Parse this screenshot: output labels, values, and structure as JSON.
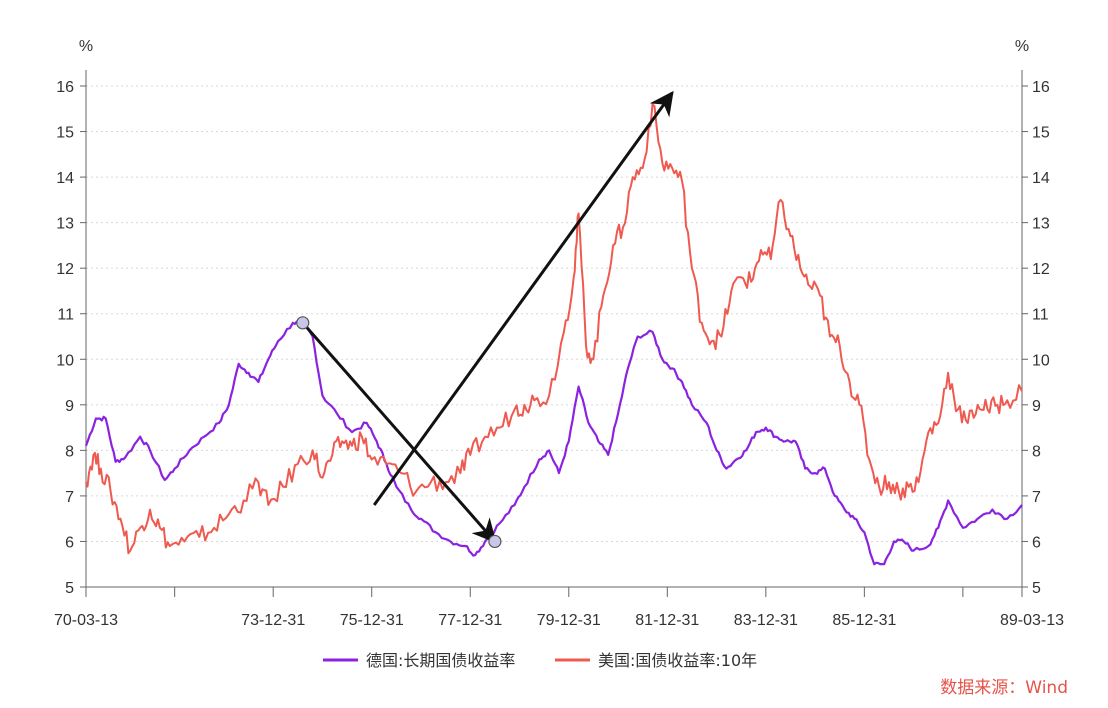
{
  "chart_data": {
    "type": "line",
    "unit_left": "%",
    "unit_right": "%",
    "ylim": [
      5,
      16
    ],
    "yticks": [
      5,
      6,
      7,
      8,
      9,
      10,
      11,
      12,
      13,
      14,
      15,
      16
    ],
    "xlim": [
      1970.2,
      1989.2
    ],
    "x_tick_labels": [
      {
        "t": 1970.2,
        "label": "70-03-13"
      },
      {
        "t": 1974.0,
        "label": "73-12-31"
      },
      {
        "t": 1976.0,
        "label": "75-12-31"
      },
      {
        "t": 1978.0,
        "label": "77-12-31"
      },
      {
        "t": 1980.0,
        "label": "79-12-31"
      },
      {
        "t": 1982.0,
        "label": "81-12-31"
      },
      {
        "t": 1984.0,
        "label": "83-12-31"
      },
      {
        "t": 1986.0,
        "label": "85-12-31"
      },
      {
        "t": 1989.2,
        "label": "89-03-13"
      }
    ],
    "x_minor_ticks": [
      1972.0,
      1988.0
    ],
    "legend_position": "bottom",
    "series": [
      {
        "name": "德国:长期国债收益率",
        "color": "#8b22e0",
        "points": [
          [
            1970.2,
            8.1
          ],
          [
            1970.4,
            8.7
          ],
          [
            1970.6,
            8.7
          ],
          [
            1970.8,
            7.75
          ],
          [
            1971.0,
            7.85
          ],
          [
            1971.3,
            8.3
          ],
          [
            1971.5,
            8.0
          ],
          [
            1971.8,
            7.35
          ],
          [
            1972.0,
            7.6
          ],
          [
            1972.3,
            8.0
          ],
          [
            1972.6,
            8.3
          ],
          [
            1972.9,
            8.6
          ],
          [
            1973.1,
            9.0
          ],
          [
            1973.3,
            9.9
          ],
          [
            1973.5,
            9.7
          ],
          [
            1973.7,
            9.5
          ],
          [
            1973.9,
            10.0
          ],
          [
            1974.1,
            10.4
          ],
          [
            1974.4,
            10.8
          ],
          [
            1974.6,
            10.8
          ],
          [
            1974.8,
            10.5
          ],
          [
            1975.0,
            9.2
          ],
          [
            1975.3,
            8.8
          ],
          [
            1975.6,
            8.4
          ],
          [
            1975.9,
            8.6
          ],
          [
            1976.1,
            8.2
          ],
          [
            1976.3,
            7.7
          ],
          [
            1976.5,
            7.2
          ],
          [
            1976.8,
            6.7
          ],
          [
            1977.0,
            6.5
          ],
          [
            1977.3,
            6.2
          ],
          [
            1977.6,
            6.0
          ],
          [
            1977.9,
            5.9
          ],
          [
            1978.1,
            5.7
          ],
          [
            1978.3,
            6.0
          ],
          [
            1978.6,
            6.4
          ],
          [
            1978.9,
            6.8
          ],
          [
            1979.1,
            7.2
          ],
          [
            1979.4,
            7.8
          ],
          [
            1979.6,
            8.0
          ],
          [
            1979.8,
            7.5
          ],
          [
            1980.0,
            8.2
          ],
          [
            1980.2,
            9.4
          ],
          [
            1980.4,
            8.6
          ],
          [
            1980.6,
            8.2
          ],
          [
            1980.8,
            7.9
          ],
          [
            1981.0,
            8.8
          ],
          [
            1981.2,
            9.8
          ],
          [
            1981.4,
            10.5
          ],
          [
            1981.7,
            10.6
          ],
          [
            1981.9,
            10.0
          ],
          [
            1982.1,
            9.8
          ],
          [
            1982.3,
            9.5
          ],
          [
            1982.5,
            9.0
          ],
          [
            1982.8,
            8.6
          ],
          [
            1983.0,
            8.0
          ],
          [
            1983.2,
            7.6
          ],
          [
            1983.4,
            7.8
          ],
          [
            1983.6,
            8.0
          ],
          [
            1983.8,
            8.4
          ],
          [
            1984.0,
            8.5
          ],
          [
            1984.2,
            8.3
          ],
          [
            1984.4,
            8.2
          ],
          [
            1984.6,
            8.2
          ],
          [
            1984.8,
            7.6
          ],
          [
            1985.0,
            7.5
          ],
          [
            1985.2,
            7.6
          ],
          [
            1985.4,
            7.0
          ],
          [
            1985.6,
            6.7
          ],
          [
            1985.8,
            6.5
          ],
          [
            1986.0,
            6.2
          ],
          [
            1986.2,
            5.5
          ],
          [
            1986.4,
            5.5
          ],
          [
            1986.6,
            6.0
          ],
          [
            1986.8,
            6.0
          ],
          [
            1987.0,
            5.8
          ],
          [
            1987.3,
            5.9
          ],
          [
            1987.5,
            6.3
          ],
          [
            1987.7,
            6.9
          ],
          [
            1988.0,
            6.3
          ],
          [
            1988.3,
            6.5
          ],
          [
            1988.6,
            6.7
          ],
          [
            1988.9,
            6.5
          ],
          [
            1989.2,
            6.8
          ]
        ]
      },
      {
        "name": "美国:国债收益率:10年",
        "color": "#ef5a50",
        "points": [
          [
            1970.2,
            7.3
          ],
          [
            1970.35,
            7.9
          ],
          [
            1970.5,
            7.6
          ],
          [
            1970.7,
            7.1
          ],
          [
            1970.9,
            6.5
          ],
          [
            1971.1,
            5.8
          ],
          [
            1971.3,
            6.3
          ],
          [
            1971.5,
            6.7
          ],
          [
            1971.7,
            6.3
          ],
          [
            1971.9,
            5.9
          ],
          [
            1972.2,
            6.0
          ],
          [
            1972.5,
            6.1
          ],
          [
            1972.8,
            6.3
          ],
          [
            1973.1,
            6.6
          ],
          [
            1973.4,
            6.9
          ],
          [
            1973.7,
            7.3
          ],
          [
            1973.9,
            6.8
          ],
          [
            1974.2,
            7.2
          ],
          [
            1974.5,
            7.7
          ],
          [
            1974.8,
            8.0
          ],
          [
            1975.0,
            7.4
          ],
          [
            1975.2,
            7.9
          ],
          [
            1975.4,
            8.2
          ],
          [
            1975.6,
            8.1
          ],
          [
            1975.8,
            8.3
          ],
          [
            1976.0,
            7.8
          ],
          [
            1976.3,
            7.7
          ],
          [
            1976.6,
            7.5
          ],
          [
            1976.9,
            7.1
          ],
          [
            1977.2,
            7.3
          ],
          [
            1977.5,
            7.3
          ],
          [
            1977.8,
            7.5
          ],
          [
            1978.0,
            7.9
          ],
          [
            1978.3,
            8.3
          ],
          [
            1978.6,
            8.5
          ],
          [
            1978.9,
            8.9
          ],
          [
            1979.1,
            9.0
          ],
          [
            1979.3,
            9.1
          ],
          [
            1979.6,
            9.2
          ],
          [
            1979.9,
            10.6
          ],
          [
            1980.1,
            11.8
          ],
          [
            1980.2,
            13.2
          ],
          [
            1980.35,
            10.3
          ],
          [
            1980.5,
            10.0
          ],
          [
            1980.7,
            11.4
          ],
          [
            1980.9,
            12.5
          ],
          [
            1981.1,
            12.9
          ],
          [
            1981.3,
            14.0
          ],
          [
            1981.5,
            14.2
          ],
          [
            1981.7,
            15.6
          ],
          [
            1981.9,
            14.3
          ],
          [
            1982.1,
            14.2
          ],
          [
            1982.3,
            13.9
          ],
          [
            1982.5,
            12.0
          ],
          [
            1982.7,
            10.8
          ],
          [
            1982.9,
            10.4
          ],
          [
            1983.1,
            10.5
          ],
          [
            1983.3,
            11.5
          ],
          [
            1983.5,
            11.8
          ],
          [
            1983.7,
            11.7
          ],
          [
            1983.9,
            12.4
          ],
          [
            1984.1,
            12.2
          ],
          [
            1984.3,
            13.5
          ],
          [
            1984.5,
            12.7
          ],
          [
            1984.7,
            12.0
          ],
          [
            1984.9,
            11.6
          ],
          [
            1985.1,
            11.4
          ],
          [
            1985.3,
            10.5
          ],
          [
            1985.5,
            10.3
          ],
          [
            1985.7,
            9.5
          ],
          [
            1985.9,
            9.0
          ],
          [
            1986.1,
            7.8
          ],
          [
            1986.3,
            7.2
          ],
          [
            1986.5,
            7.3
          ],
          [
            1986.7,
            7.1
          ],
          [
            1986.9,
            7.2
          ],
          [
            1987.1,
            7.3
          ],
          [
            1987.3,
            8.4
          ],
          [
            1987.5,
            8.6
          ],
          [
            1987.7,
            9.7
          ],
          [
            1987.9,
            8.9
          ],
          [
            1988.1,
            8.6
          ],
          [
            1988.3,
            9.0
          ],
          [
            1988.5,
            8.9
          ],
          [
            1988.7,
            9.0
          ],
          [
            1988.9,
            9.1
          ],
          [
            1989.2,
            9.3
          ]
        ]
      }
    ],
    "annotations": {
      "markers": [
        [
          1974.6,
          10.8
        ],
        [
          1978.5,
          6.0
        ]
      ],
      "arrows": [
        {
          "from": [
            1974.6,
            10.8
          ],
          "to": [
            1978.5,
            6.0
          ]
        },
        {
          "from": [
            1976.05,
            6.8
          ],
          "to": [
            1982.1,
            15.85
          ]
        }
      ]
    }
  },
  "legend": {
    "items": [
      {
        "label": "德国:长期国债收益率",
        "color": "#8b22e0"
      },
      {
        "label": "美国:国债收益率:10年",
        "color": "#ef5a50"
      }
    ]
  },
  "source": {
    "text": "数据来源：Wind"
  }
}
